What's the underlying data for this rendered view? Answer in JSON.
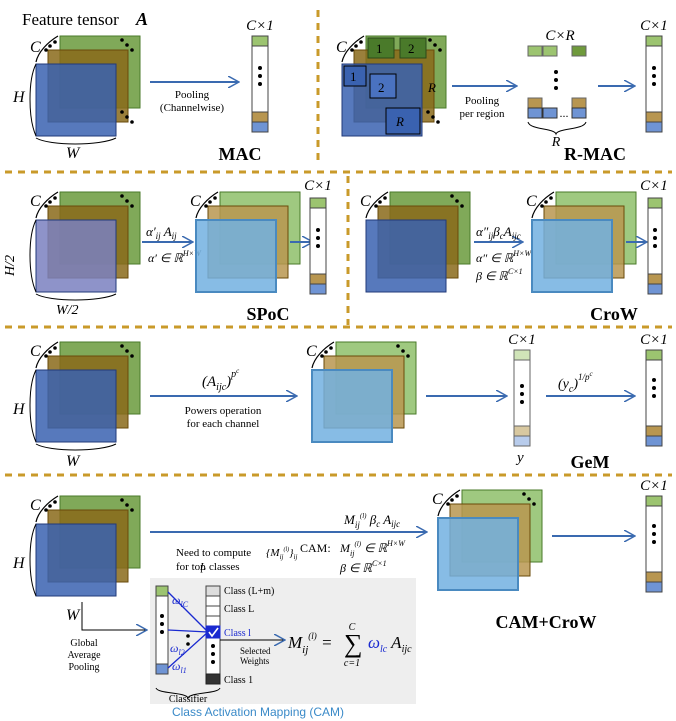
{
  "header": {
    "title": "Feature tensor",
    "symbol": "A"
  },
  "dims": {
    "C": "C",
    "H": "H",
    "W": "W",
    "H2": "H/2",
    "W2": "W/2",
    "R": "R",
    "y": "y",
    "r1": "1",
    "r2": "2",
    "rR": "R"
  },
  "methods": {
    "mac": {
      "name": "MAC",
      "pool": "Pooling",
      "pool2": "(Channelwise)",
      "vec": "C×1"
    },
    "rmac": {
      "name": "R-MAC",
      "pool": "Pooling",
      "pool2": "per region",
      "matrix": "C×R",
      "vec": "C×1",
      "dots": "..."
    },
    "spoc": {
      "name": "SPoC",
      "vec": "C×1"
    },
    "crow": {
      "name": "CroW",
      "vec": "C×1"
    },
    "gem": {
      "name": "GeM",
      "op1": "Powers operation",
      "op2": "for each channel",
      "vec_in": "C×1",
      "vec": "C×1"
    },
    "camcrow": {
      "name": "CAM+CroW",
      "vec": "C×1",
      "cam_label": "CAM:",
      "need1": "Need to compute",
      "need2": "for top",
      "need3": "classes",
      "gap1": "Global",
      "gap2": "Average",
      "gap3": "Pooling",
      "classifier": "Classifier",
      "selected1": "Selected",
      "selected2": "Weights",
      "class_lm": "Class (L+m)",
      "class_L": "Class L",
      "class_l": "Class l",
      "class_1": "Class 1",
      "sum_top": "C",
      "sum_bottom": "c=1"
    }
  },
  "cam_caption": "Class Activation Mapping (CAM)",
  "colors": {
    "green": "#6a9a3c",
    "gold": "#8a6a1a",
    "blue": "#3a62b0",
    "light_blue": "#5aa8d8",
    "divider": "#c99a2a",
    "arrow": "#3a6ab0",
    "cam_blue": "#1a2ad0",
    "panel": "#eeeeee"
  }
}
